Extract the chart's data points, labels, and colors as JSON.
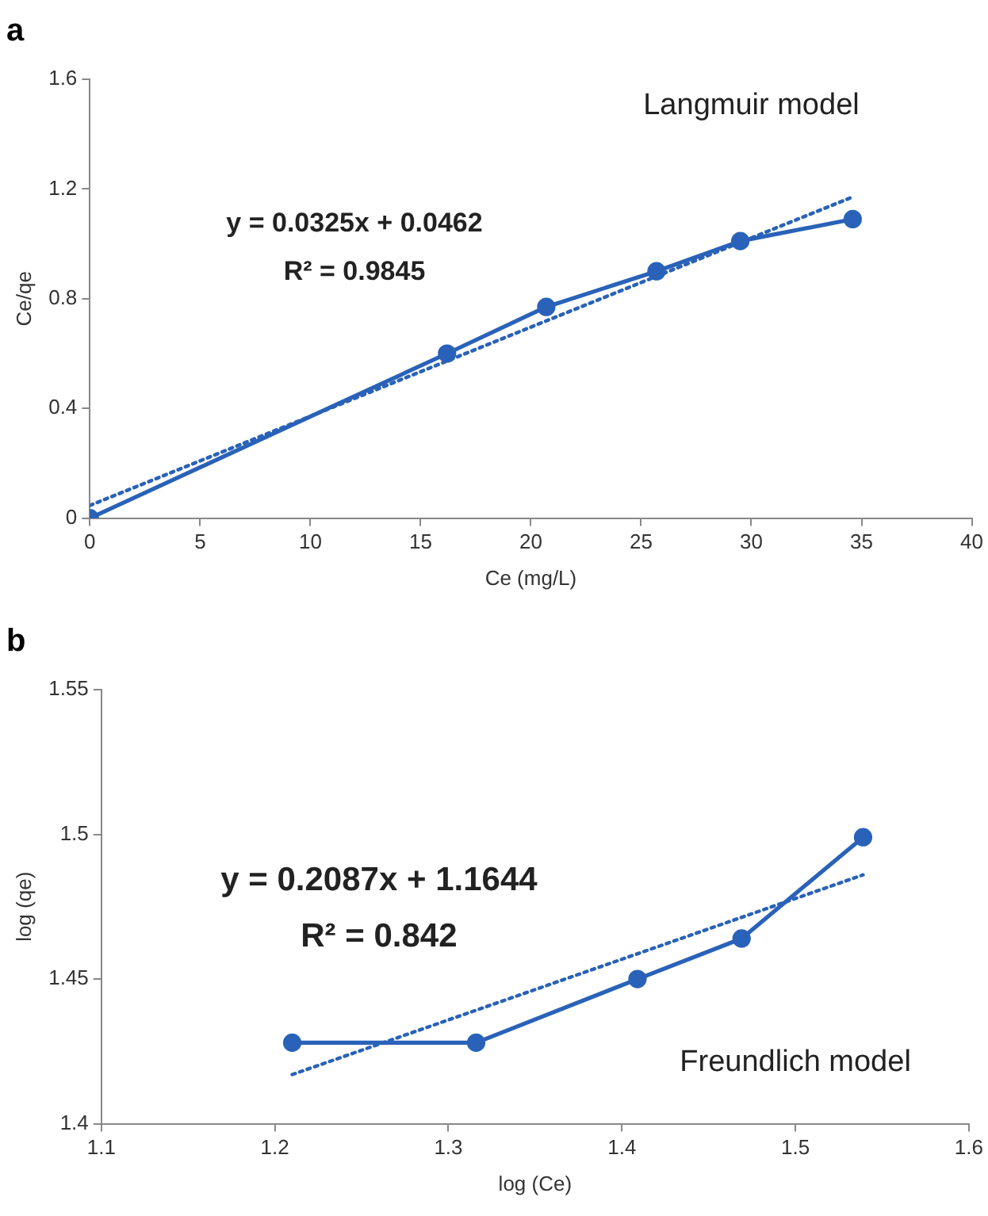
{
  "chart_data": [
    {
      "type": "line",
      "title": "a",
      "xlabel": "Ce (mg/L)",
      "ylabel": "Ce/qe",
      "xlim": [
        0,
        40
      ],
      "xticks": [
        0,
        5,
        10,
        15,
        20,
        25,
        30,
        35,
        40
      ],
      "ylim": [
        0,
        1.6
      ],
      "yticks": [
        0,
        0.4,
        0.8,
        1.2,
        1.6
      ],
      "grid": false,
      "legend": false,
      "series": [
        {
          "color": "#2962b8",
          "x": [
            0,
            16.2,
            20.7,
            25.7,
            29.5,
            34.6
          ],
          "values": [
            0,
            0.6,
            0.77,
            0.9,
            1.01,
            1.09
          ],
          "marker": "circle",
          "line_style": "solid"
        },
        {
          "type": "line",
          "color": "#2962b8",
          "x": [
            0,
            34.6
          ],
          "values": [
            0.0462,
            1.171
          ],
          "marker": "none",
          "line_style": "dotted"
        }
      ],
      "annotations": [
        "y = 0.0325x + 0.0462",
        "R² = 0.9845",
        "Langmuir model"
      ]
    },
    {
      "type": "line",
      "title": "b",
      "xlabel": "log (Ce)",
      "ylabel": "log (qe)",
      "xlim": [
        1.1,
        1.6
      ],
      "xticks": [
        1.1,
        1.2,
        1.3,
        1.4,
        1.5,
        1.6
      ],
      "ylim": [
        1.4,
        1.55
      ],
      "yticks": [
        1.4,
        1.45,
        1.5,
        1.55
      ],
      "grid": false,
      "legend": false,
      "series": [
        {
          "color": "#2962b8",
          "x": [
            1.21,
            1.316,
            1.409,
            1.469,
            1.539
          ],
          "values": [
            1.428,
            1.428,
            1.45,
            1.464,
            1.499
          ],
          "marker": "circle",
          "line_style": "solid"
        },
        {
          "type": "line",
          "color": "#2962b8",
          "x": [
            1.21,
            1.539
          ],
          "values": [
            1.417,
            1.486
          ],
          "marker": "none",
          "line_style": "dotted"
        }
      ],
      "annotations": [
        "y = 0.2087x + 1.1644",
        "R² = 0.842",
        "Freundlich model"
      ]
    }
  ]
}
